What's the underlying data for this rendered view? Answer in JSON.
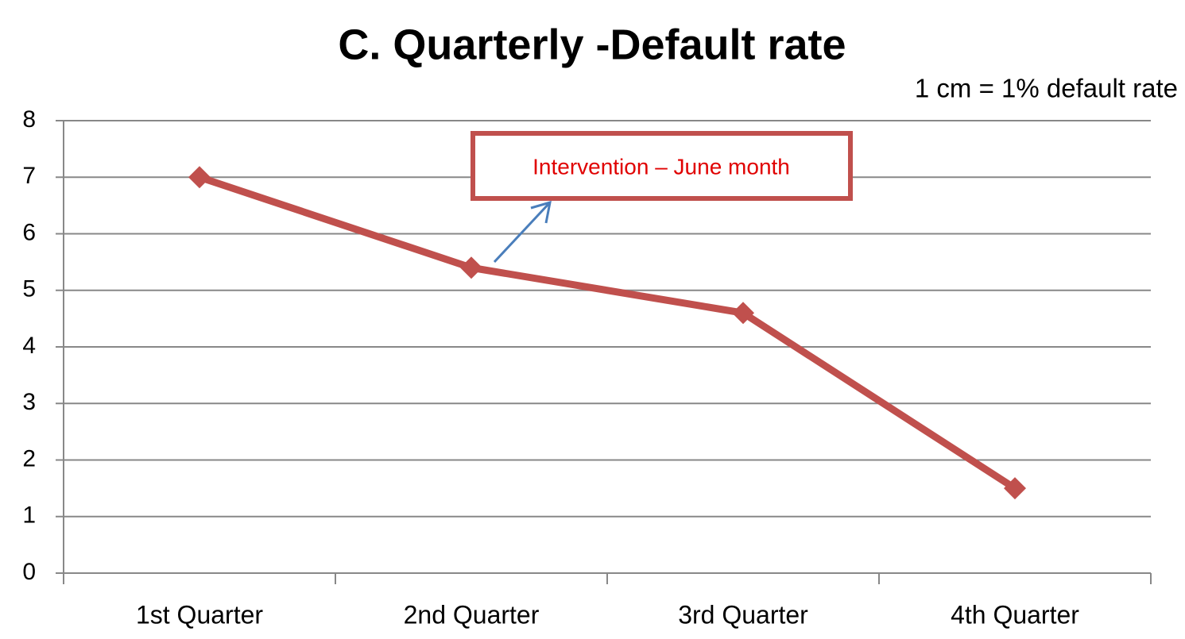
{
  "chart_data": {
    "type": "line",
    "title": "C. Quarterly -Default rate",
    "subtitle": "1 cm = 1% default rate",
    "annotation": "Intervention – June month",
    "categories": [
      "1st Quarter",
      "2nd Quarter",
      "3rd Quarter",
      "4th Quarter"
    ],
    "values": [
      7,
      5.4,
      4.6,
      1.5
    ],
    "color": "#c0504d",
    "ylim": [
      0,
      8
    ],
    "yticks": [
      0,
      1,
      2,
      3,
      4,
      5,
      6,
      7,
      8
    ],
    "grid": true
  }
}
